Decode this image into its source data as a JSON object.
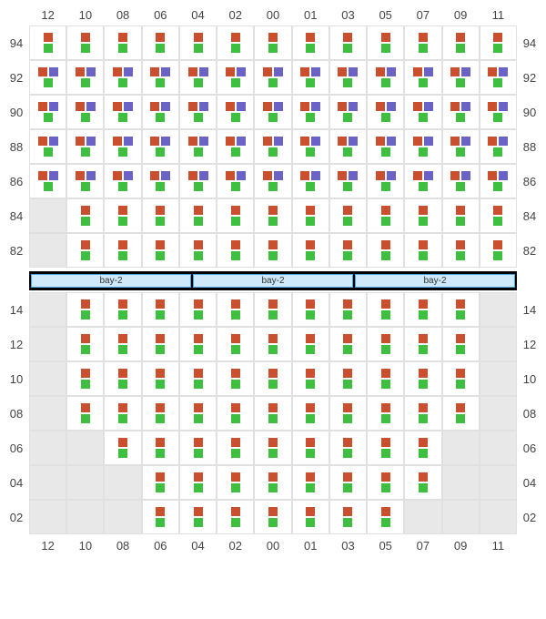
{
  "colors": {
    "orange": "#c94f2f",
    "green": "#3fbf3f",
    "purple": "#6a62c4",
    "cell_border": "#e0e0e0",
    "disabled_bg": "#e8e8e8",
    "label_color": "#444444",
    "bay_bg": "#cfe9fa",
    "bay_border": "#4aa6e0",
    "bay_strip_bg": "#000000"
  },
  "font": {
    "family": "Arial, sans-serif",
    "label_size": 13,
    "bay_size": 10
  },
  "columns": [
    "12",
    "10",
    "08",
    "06",
    "04",
    "02",
    "00",
    "01",
    "03",
    "05",
    "07",
    "09",
    "11"
  ],
  "top": {
    "rows": [
      "94",
      "92",
      "90",
      "88",
      "86",
      "84",
      "82"
    ],
    "pattern": {
      "94": "O",
      "92": "OP",
      "90": "OP",
      "88": "OP",
      "86": "OP",
      "84": "O",
      "82": "O"
    },
    "disabled": {
      "84": [
        0
      ],
      "82": [
        0
      ]
    }
  },
  "bay": {
    "segments": [
      "bay-2",
      "bay-2",
      "bay-2"
    ]
  },
  "bottom": {
    "rows": [
      "14",
      "12",
      "10",
      "08",
      "06",
      "04",
      "02"
    ],
    "disabled": {
      "14": [
        0,
        12
      ],
      "12": [
        0,
        12
      ],
      "10": [
        0,
        12
      ],
      "08": [
        0,
        12
      ],
      "06": [
        0,
        1,
        11,
        12
      ],
      "04": [
        0,
        1,
        2,
        11,
        12
      ],
      "02": [
        0,
        1,
        2,
        10,
        11,
        12
      ]
    }
  },
  "box_size": 10
}
